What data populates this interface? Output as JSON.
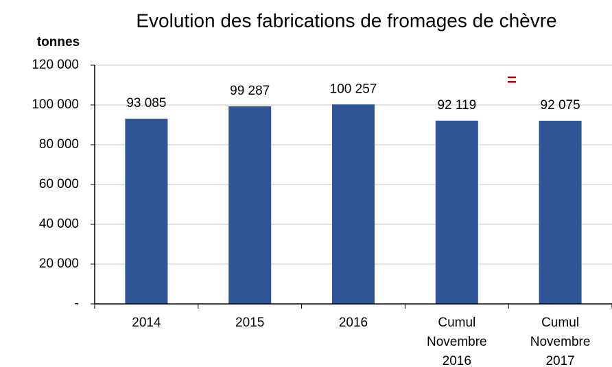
{
  "chart_data": {
    "type": "bar",
    "title": "Evolution des fabrications de fromages de chèvre",
    "y_label": "tonnes",
    "annotation": "=",
    "categories": [
      "2014",
      "2015",
      "2016",
      "Cumul Novembre 2016",
      "Cumul Novembre 2017"
    ],
    "values": [
      93085,
      99287,
      100257,
      92119,
      92075
    ],
    "value_labels": [
      "93 085",
      "99 287",
      "100 257",
      "92 119",
      "92 075"
    ],
    "color": "#2f5597",
    "ylim": [
      0,
      120000
    ],
    "yticks": [
      {
        "value": 0,
        "label": "-"
      },
      {
        "value": 20000,
        "label": "20 000"
      },
      {
        "value": 40000,
        "label": "40 000"
      },
      {
        "value": 60000,
        "label": "60 000"
      },
      {
        "value": 80000,
        "label": "80 000"
      },
      {
        "value": 100000,
        "label": "100 000"
      },
      {
        "value": 120000,
        "label": "120 000"
      }
    ],
    "grid": true
  }
}
